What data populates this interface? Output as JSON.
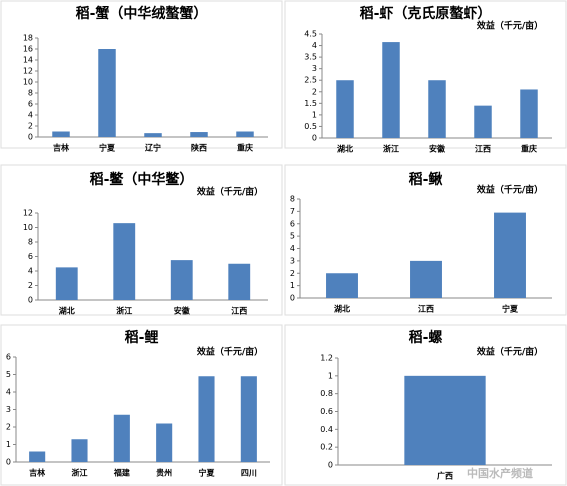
{
  "chart_data": [
    {
      "type": "bar",
      "title": "稻-蟹（中华绒螯蟹）",
      "categories": [
        "吉林",
        "宁夏",
        "辽宁",
        "陕西",
        "重庆"
      ],
      "values": [
        1.0,
        16,
        0.7,
        0.9,
        1.0
      ],
      "color": "#4f81bd",
      "ylim": [
        0,
        18
      ],
      "yticks": [
        0,
        2,
        4,
        6,
        8,
        10,
        12,
        14,
        16,
        18
      ]
    },
    {
      "type": "bar",
      "title": "稻-虾（克氏原螯虾）",
      "y_label": "效益（千元/亩）",
      "categories": [
        "湖北",
        "浙江",
        "安徽",
        "江西",
        "重庆"
      ],
      "values": [
        2.5,
        4.15,
        2.5,
        1.4,
        2.1
      ],
      "color": "#4f81bd",
      "ylim": [
        0,
        4.5
      ],
      "yticks": [
        0,
        0.5,
        1,
        1.5,
        2,
        2.5,
        3,
        3.5,
        4,
        4.5
      ]
    },
    {
      "type": "bar",
      "title": "稻-鳖（中华鳖）",
      "y_label": "效益（千元/亩）",
      "categories": [
        "湖北",
        "浙江",
        "安徽",
        "江西"
      ],
      "values": [
        4.5,
        10.6,
        5.5,
        5.0
      ],
      "color": "#4f81bd",
      "ylim": [
        0,
        12
      ],
      "yticks": [
        0,
        2,
        4,
        6,
        8,
        10,
        12
      ]
    },
    {
      "type": "bar",
      "title": "稻-鳅",
      "y_label": "效益（千元/亩）",
      "categories": [
        "湖北",
        "江西",
        "宁夏"
      ],
      "values": [
        2,
        3,
        6.9
      ],
      "color": "#4f81bd",
      "ylim": [
        0,
        8
      ],
      "yticks": [
        0,
        1,
        2,
        3,
        4,
        5,
        6,
        7,
        8
      ]
    },
    {
      "type": "bar",
      "title": "稻-鲤",
      "y_label": "效益（千元/亩）",
      "categories": [
        "吉林",
        "浙江",
        "福建",
        "贵州",
        "宁夏",
        "四川"
      ],
      "values": [
        0.6,
        1.3,
        2.7,
        2.2,
        4.9,
        4.9
      ],
      "color": "#4f81bd",
      "ylim": [
        0,
        6
      ],
      "yticks": [
        0,
        1,
        2,
        3,
        4,
        5,
        6
      ]
    },
    {
      "type": "bar",
      "title": "稻-螺",
      "y_label": "效益（千元/亩）",
      "categories": [
        "广西"
      ],
      "values": [
        1.0
      ],
      "color": "#4f81bd",
      "ylim": [
        0,
        1.2
      ],
      "yticks": [
        0,
        0.2,
        0.4,
        0.6,
        0.8,
        1,
        1.2
      ]
    }
  ],
  "watermark": "中国水产频道"
}
